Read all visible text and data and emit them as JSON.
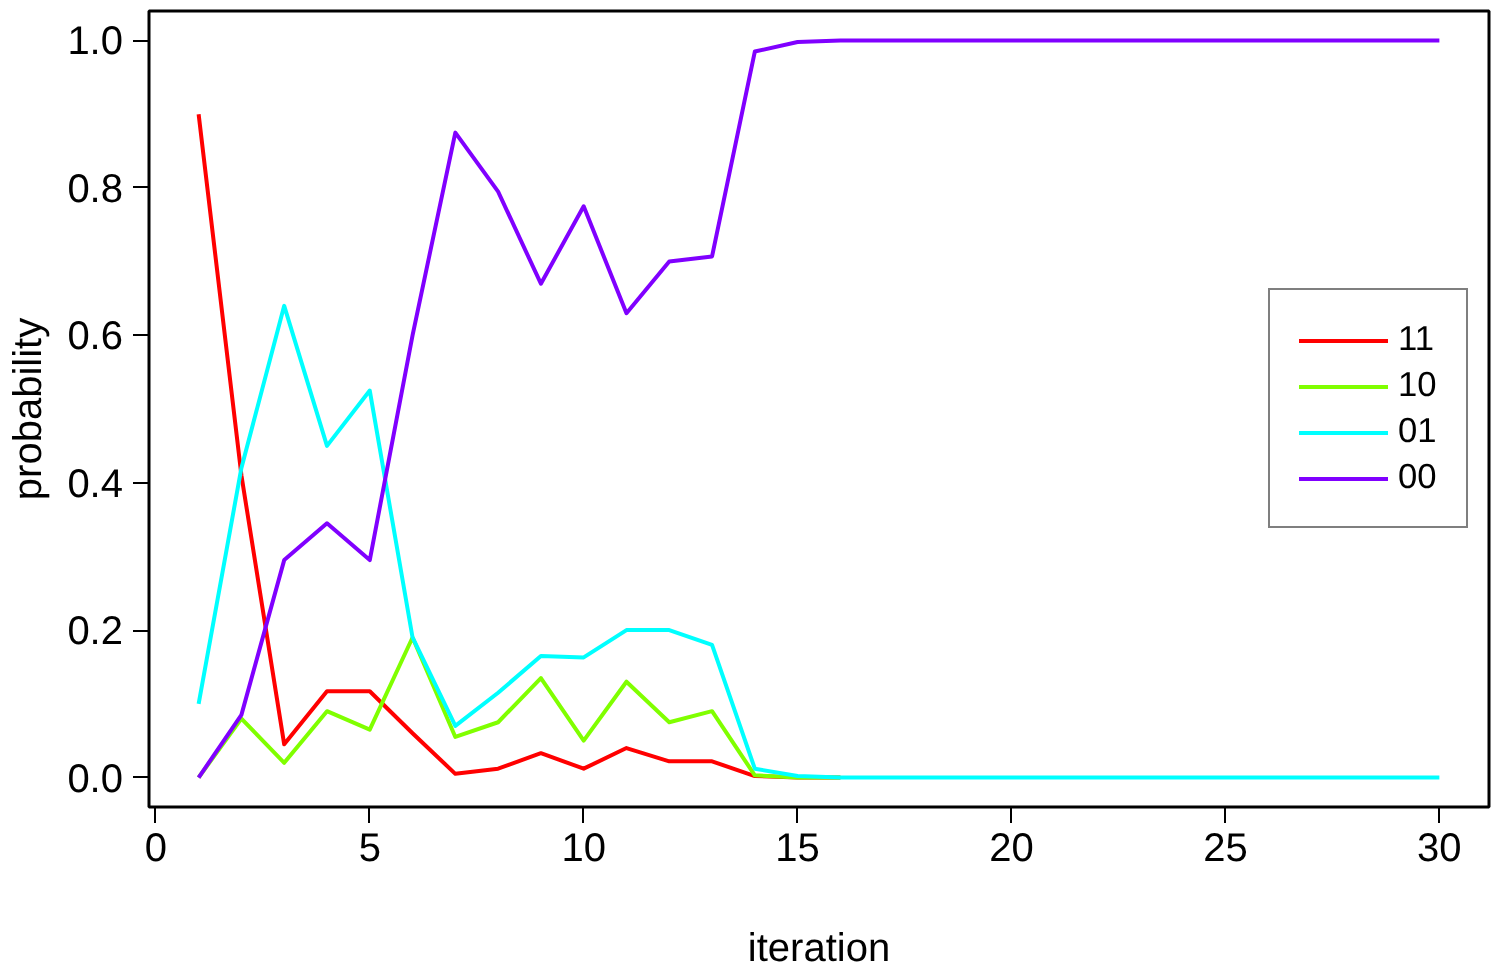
{
  "chart_data": {
    "type": "line",
    "xlabel": "iteration",
    "ylabel": "probability",
    "x": [
      1,
      2,
      3,
      4,
      5,
      6,
      7,
      8,
      9,
      10,
      11,
      12,
      13,
      14,
      15,
      16,
      17,
      18,
      19,
      20,
      21,
      22,
      23,
      24,
      25,
      26,
      27,
      28,
      29,
      30
    ],
    "xlim": [
      -0.16,
      31.16
    ],
    "ylim": [
      -0.04,
      1.04
    ],
    "xticks": [
      0,
      5,
      10,
      15,
      20,
      25,
      30
    ],
    "yticks": [
      {
        "value": 0,
        "label": "0.0"
      },
      {
        "value": 0.2,
        "label": "0.2"
      },
      {
        "value": 0.4,
        "label": "0.4"
      },
      {
        "value": 0.6,
        "label": "0.6"
      },
      {
        "value": 0.8,
        "label": "0.8"
      },
      {
        "value": 1,
        "label": "1.0"
      }
    ],
    "grid": false,
    "legend": "right",
    "line_style": "solid",
    "series": [
      {
        "name": "11",
        "color": "#ff0000",
        "values": [
          0.9,
          0.41,
          0.045,
          0.117,
          0.117,
          0.06,
          0.005,
          0.012,
          0.033,
          0.012,
          0.04,
          0.022,
          0.022,
          0.002,
          0,
          0,
          null,
          null,
          null,
          null,
          null,
          null,
          null,
          null,
          null,
          null,
          null,
          null,
          null,
          null
        ]
      },
      {
        "name": "10",
        "color": "#80ff00",
        "values": [
          0,
          0.08,
          0.02,
          0.09,
          0.065,
          0.19,
          0.055,
          0.075,
          0.135,
          0.05,
          0.13,
          0.075,
          0.09,
          0.003,
          0,
          0,
          null,
          null,
          null,
          null,
          null,
          null,
          null,
          null,
          null,
          null,
          null,
          null,
          null,
          null
        ]
      },
      {
        "name": "01",
        "color": "#00ffff",
        "values": [
          0.1,
          0.42,
          0.64,
          0.45,
          0.525,
          0.19,
          0.07,
          0.115,
          0.165,
          0.163,
          0.2,
          0.2,
          0.18,
          0.012,
          0.002,
          0,
          0,
          0,
          0,
          0,
          0,
          0,
          0,
          0,
          0,
          0,
          0,
          0,
          0,
          0
        ]
      },
      {
        "name": "00",
        "color": "#8000ff",
        "values": [
          0,
          0.085,
          0.295,
          0.345,
          0.295,
          0.6,
          0.875,
          0.795,
          0.67,
          0.775,
          0.63,
          0.7,
          0.707,
          0.985,
          0.998,
          1,
          1,
          1,
          1,
          1,
          1,
          1,
          1,
          1,
          1,
          1,
          1,
          1,
          1,
          1
        ]
      }
    ]
  }
}
